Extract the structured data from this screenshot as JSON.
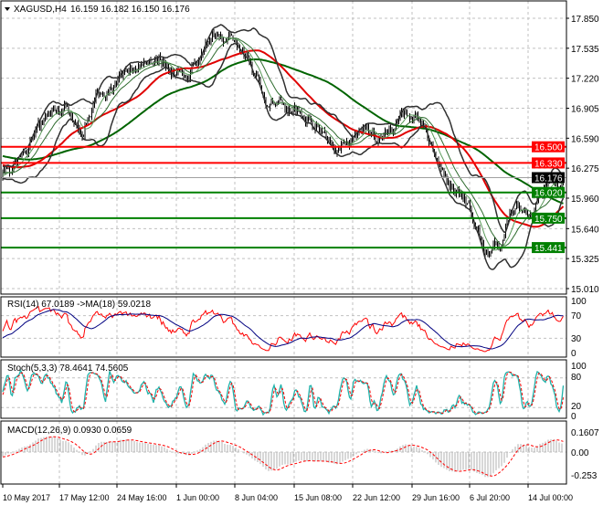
{
  "header": {
    "symbol": "XAGUSD,H4",
    "ohlc": "16.159 16.182 16.150 16.176"
  },
  "chart_data": [
    {
      "type": "line",
      "title": "XAGUSD,H4",
      "yticks": [
        "17.850",
        "17.535",
        "17.220",
        "16.905",
        "16.590",
        "16.275",
        "15.960",
        "15.640",
        "15.325",
        "15.010"
      ],
      "ylim": [
        15.01,
        17.85
      ],
      "xticks": [
        "10 May 2017",
        "17 May 12:00",
        "24 May 16:00",
        "1 Jun 00:00",
        "8 Jun 04:00",
        "15 Jun 08:00",
        "22 Jun 12:00",
        "29 Jun 16:00",
        "6 Jul 20:00",
        "14 Jul 00:00"
      ],
      "close_samples": [
        16.2,
        16.35,
        16.6,
        16.8,
        16.95,
        16.6,
        17.05,
        17.15,
        17.25,
        17.4,
        17.45,
        17.3,
        17.25,
        17.6,
        17.7,
        17.6,
        17.3,
        16.95,
        16.95,
        16.9,
        16.75,
        16.55,
        16.5,
        16.7,
        16.6,
        16.7,
        16.85,
        16.7,
        16.3,
        16.05,
        15.9,
        15.35,
        15.5,
        15.9,
        15.75,
        16.1,
        16.176
      ],
      "current_price": {
        "label": "16.176",
        "color": "#000000"
      },
      "levels": [
        {
          "label": "16.500",
          "color": "#ff0000"
        },
        {
          "label": "16.330",
          "color": "#ff0000"
        },
        {
          "label": "16.020",
          "color": "#008000"
        },
        {
          "label": "15.750",
          "color": "#008000"
        },
        {
          "label": "15.441",
          "color": "#008000"
        }
      ],
      "grid": true
    },
    {
      "type": "line",
      "title": "RSI(14) 67.0189  ->MA(18) 59.0218",
      "yticks": [
        "100",
        "70",
        "30",
        "0"
      ],
      "ylim": [
        0,
        100
      ],
      "series": [
        {
          "name": "RSI(14)",
          "color": "#ff0000"
        },
        {
          "name": "MA(18)",
          "color": "#000080"
        }
      ]
    },
    {
      "type": "line",
      "title": "Stoch(5,3,3) 78.4641 74.5605",
      "yticks": [
        "100",
        "80",
        "20",
        "0"
      ],
      "ylim": [
        0,
        100
      ],
      "series": [
        {
          "name": "main",
          "color": "#20b2aa"
        },
        {
          "name": "signal",
          "color": "#ff0000"
        }
      ]
    },
    {
      "type": "bar",
      "title": "MACD(12,26,9) 0.0930 0.0659",
      "yticks": [
        "0.1607",
        "0.00",
        "-0.253"
      ],
      "ylim": [
        -0.253,
        0.1607
      ]
    }
  ]
}
